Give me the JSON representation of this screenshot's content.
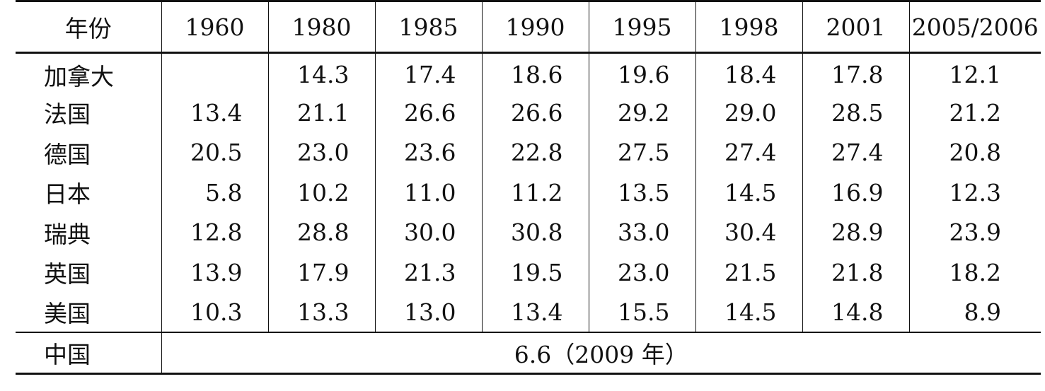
{
  "table": {
    "header": {
      "label": "年份",
      "years": [
        "1960",
        "1980",
        "1985",
        "1990",
        "1995",
        "1998",
        "2001",
        "2005/2006"
      ]
    },
    "rows": [
      {
        "country": "加拿大",
        "values": [
          "",
          "14.3",
          "17.4",
          "18.6",
          "19.6",
          "18.4",
          "17.8",
          "12.1"
        ]
      },
      {
        "country": "法国",
        "values": [
          "13.4",
          "21.1",
          "26.6",
          "26.6",
          "29.2",
          "29.0",
          "28.5",
          "21.2"
        ]
      },
      {
        "country": "德国",
        "values": [
          "20.5",
          "23.0",
          "23.6",
          "22.8",
          "27.5",
          "27.4",
          "27.4",
          "20.8"
        ]
      },
      {
        "country": "日本",
        "values": [
          "5.8",
          "10.2",
          "11.0",
          "11.2",
          "13.5",
          "14.5",
          "16.9",
          "12.3"
        ]
      },
      {
        "country": "瑞典",
        "values": [
          "12.8",
          "28.8",
          "30.0",
          "30.8",
          "33.0",
          "30.4",
          "28.9",
          "23.9"
        ]
      },
      {
        "country": "英国",
        "values": [
          "13.9",
          "17.9",
          "21.3",
          "19.5",
          "23.0",
          "21.5",
          "21.8",
          "18.2"
        ]
      },
      {
        "country": "美国",
        "values": [
          "10.3",
          "13.3",
          "13.0",
          "13.4",
          "15.5",
          "14.5",
          "14.8",
          "8.9"
        ]
      }
    ],
    "china": {
      "country": "中国",
      "value": "6.6（2009 年）"
    }
  }
}
